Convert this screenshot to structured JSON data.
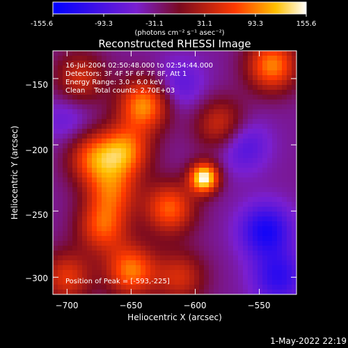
{
  "colorbar": {
    "ticks": [
      "-155.6",
      "-93.3",
      "-31.1",
      "31.1",
      "93.3",
      "155.6"
    ],
    "range": [
      -155.6,
      155.6
    ],
    "unit_label": "(photons cm⁻² s⁻¹ asec⁻²)"
  },
  "title": "Reconstructed RHESSI Image",
  "annotations": {
    "time": "16-Jul-2004 02:50:48.000 to 02:54:44.000",
    "detectors": "Detectors: 3F 4F 5F 6F 7F 8F, Att 1",
    "energy": "Energy Range: 3.0 - 6.0 keV",
    "method": "Clean    Total counts: 2.70E+03",
    "peak": "Position of Peak = [-593,-225]"
  },
  "timestamp": "1-May-2022 22:19",
  "chart_data": {
    "type": "heatmap",
    "title": "Reconstructed RHESSI Image",
    "xlabel": "Heliocentric X (arcsec)",
    "ylabel": "Heliocentric Y (arcsec)",
    "xlim": [
      -711,
      -521
    ],
    "ylim": [
      -313,
      -129
    ],
    "x_ticks": [
      -700,
      -650,
      -600,
      -550
    ],
    "y_ticks": [
      -150,
      -200,
      -250,
      -300
    ],
    "x_tick_labels": [
      "−700",
      "−650",
      "−600",
      "−550"
    ],
    "y_tick_labels": [
      "−150",
      "−200",
      "−250",
      "−300"
    ],
    "value_range": [
      -155.6,
      155.6
    ],
    "colormap": "blue-purple-red-yellow-white",
    "peak_position": [
      -593,
      -225
    ],
    "sources": [
      {
        "x": -593,
        "y": -225,
        "value": 155.6
      },
      {
        "x": -640,
        "y": -170,
        "value": 100
      },
      {
        "x": -655,
        "y": -205,
        "value": 90
      },
      {
        "x": -680,
        "y": -210,
        "value": 70
      },
      {
        "x": -620,
        "y": -248,
        "value": 80
      },
      {
        "x": -672,
        "y": -262,
        "value": 70
      },
      {
        "x": -650,
        "y": -295,
        "value": 90
      },
      {
        "x": -700,
        "y": -300,
        "value": 55
      },
      {
        "x": -540,
        "y": -140,
        "value": 95
      },
      {
        "x": -580,
        "y": -185,
        "value": 50
      },
      {
        "x": -690,
        "y": -150,
        "value": 45
      },
      {
        "x": -665,
        "y": -235,
        "value": 60
      },
      {
        "x": -612,
        "y": -300,
        "value": 45
      }
    ],
    "troughs": [
      {
        "x": -545,
        "y": -265,
        "value": -100
      },
      {
        "x": -563,
        "y": -200,
        "value": -60
      },
      {
        "x": -535,
        "y": -300,
        "value": -80
      },
      {
        "x": -612,
        "y": -155,
        "value": -45
      },
      {
        "x": -700,
        "y": -180,
        "value": -35
      }
    ]
  }
}
